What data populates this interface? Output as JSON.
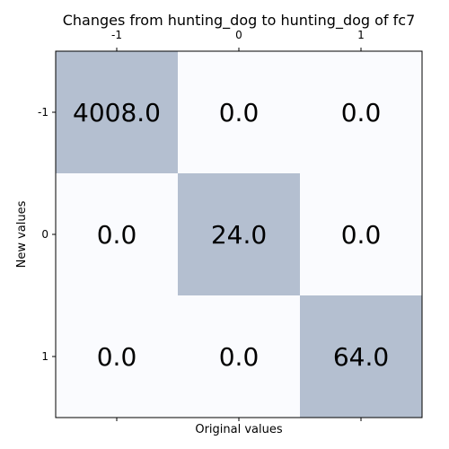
{
  "chart_data": {
    "type": "heatmap",
    "title": "Changes from hunting_dog to hunting_dog of fc7",
    "xlabel": "Original values",
    "ylabel": "New values",
    "x_categories": [
      "-1",
      "0",
      "1"
    ],
    "y_categories": [
      "-1",
      "0",
      "1"
    ],
    "values": [
      [
        4008.0,
        0.0,
        0.0
      ],
      [
        0.0,
        24.0,
        0.0
      ],
      [
        0.0,
        0.0,
        64.0
      ]
    ],
    "value_labels": [
      [
        "4008.0",
        "0.0",
        "0.0"
      ],
      [
        "0.0",
        "24.0",
        "0.0"
      ],
      [
        "0.0",
        "0.0",
        "64.0"
      ]
    ],
    "x_tick_position": "top",
    "colors": {
      "nonzero_cell": "#b4bfd0",
      "zero_cell": "#fafbfe",
      "frame": "#000000"
    }
  }
}
